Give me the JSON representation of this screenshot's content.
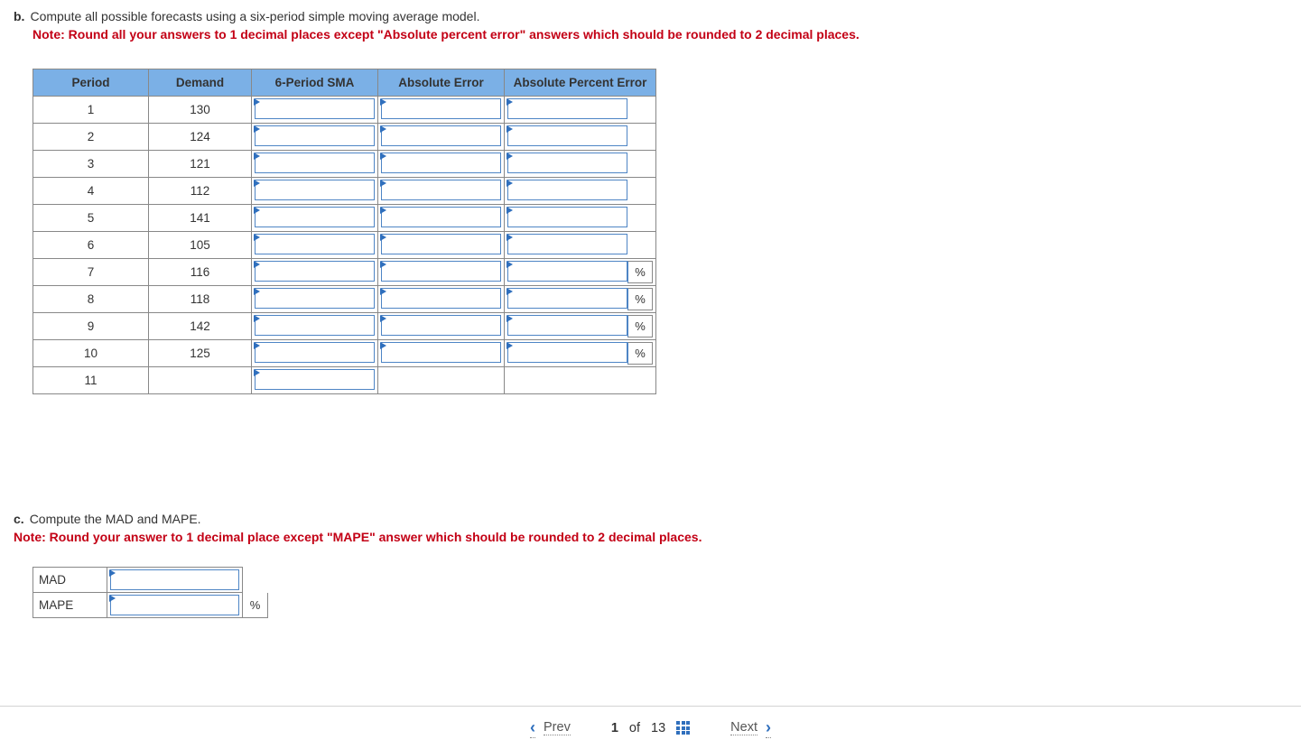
{
  "partB": {
    "label": "b.",
    "text": "Compute all possible forecasts using a six-period simple moving average model.",
    "note": "Note: Round all your answers to 1 decimal places except \"Absolute percent error\" answers which should be rounded to 2 decimal places."
  },
  "table": {
    "headers": {
      "period": "Period",
      "demand": "Demand",
      "sma": "6-Period SMA",
      "abserr": "Absolute Error",
      "ape": "Absolute Percent Error"
    },
    "rows": [
      {
        "period": "1",
        "demand": "130",
        "sma_input": true,
        "ae_input": true,
        "ape_input": true,
        "ape_suffix": false
      },
      {
        "period": "2",
        "demand": "124",
        "sma_input": true,
        "ae_input": true,
        "ape_input": true,
        "ape_suffix": false
      },
      {
        "period": "3",
        "demand": "121",
        "sma_input": true,
        "ae_input": true,
        "ape_input": true,
        "ape_suffix": false
      },
      {
        "period": "4",
        "demand": "112",
        "sma_input": true,
        "ae_input": true,
        "ape_input": true,
        "ape_suffix": false
      },
      {
        "period": "5",
        "demand": "141",
        "sma_input": true,
        "ae_input": true,
        "ape_input": true,
        "ape_suffix": false
      },
      {
        "period": "6",
        "demand": "105",
        "sma_input": true,
        "ae_input": true,
        "ape_input": true,
        "ape_suffix": false
      },
      {
        "period": "7",
        "demand": "116",
        "sma_input": true,
        "ae_input": true,
        "ape_input": true,
        "ape_suffix": true
      },
      {
        "period": "8",
        "demand": "118",
        "sma_input": true,
        "ae_input": true,
        "ape_input": true,
        "ape_suffix": true
      },
      {
        "period": "9",
        "demand": "142",
        "sma_input": true,
        "ae_input": true,
        "ape_input": true,
        "ape_suffix": true
      },
      {
        "period": "10",
        "demand": "125",
        "sma_input": true,
        "ae_input": true,
        "ape_input": true,
        "ape_suffix": true
      },
      {
        "period": "11",
        "demand": "",
        "sma_input": true,
        "ae_input": false,
        "ape_input": false,
        "ape_suffix": false
      }
    ],
    "percent": "%"
  },
  "partC": {
    "label": "c.",
    "text": "Compute the MAD and MAPE.",
    "note": "Note: Round your answer to 1 decimal place except \"MAPE\" answer which should be rounded to 2 decimal places."
  },
  "table2": {
    "mad": "MAD",
    "mape": "MAPE",
    "percent": "%"
  },
  "footer": {
    "prev": "Prev",
    "next": "Next",
    "current": "1",
    "of": "of",
    "total": "13"
  }
}
